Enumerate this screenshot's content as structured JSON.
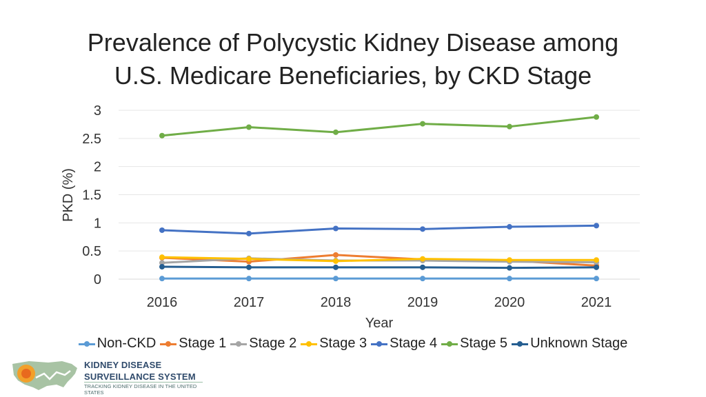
{
  "chart_data": {
    "type": "line",
    "title_lines": [
      "Prevalence of Polycystic Kidney Disease among",
      "U.S. Medicare Beneficiaries, by CKD Stage"
    ],
    "xlabel": "Year",
    "ylabel": "PKD (%)",
    "categories": [
      "2016",
      "2017",
      "2018",
      "2019",
      "2020",
      "2021"
    ],
    "ylim": [
      0,
      3
    ],
    "yticks": [
      "0",
      "0.5",
      "1",
      "1.5",
      "2",
      "2.5",
      "3"
    ],
    "ytick_values": [
      0,
      0.5,
      1,
      1.5,
      2,
      2.5,
      3
    ],
    "grid": true,
    "legend_position": "bottom",
    "series": [
      {
        "name": "Non-CKD",
        "color": "#5b9bd5",
        "values": [
          0.01,
          0.01,
          0.01,
          0.01,
          0.01,
          0.01
        ]
      },
      {
        "name": "Stage 1",
        "color": "#ed7d31",
        "values": [
          0.38,
          0.31,
          0.43,
          0.35,
          0.33,
          0.24
        ]
      },
      {
        "name": "Stage 2",
        "color": "#a5a5a5",
        "values": [
          0.29,
          0.37,
          0.33,
          0.33,
          0.31,
          0.3
        ]
      },
      {
        "name": "Stage 3",
        "color": "#ffc000",
        "values": [
          0.39,
          0.36,
          0.32,
          0.36,
          0.34,
          0.34
        ]
      },
      {
        "name": "Stage 4",
        "color": "#4472c4",
        "values": [
          0.87,
          0.81,
          0.9,
          0.89,
          0.93,
          0.95
        ]
      },
      {
        "name": "Stage 5",
        "color": "#70ad47",
        "values": [
          2.55,
          2.7,
          2.61,
          2.76,
          2.71,
          2.88
        ]
      },
      {
        "name": "Unknown Stage",
        "color": "#255e91",
        "values": [
          0.22,
          0.21,
          0.21,
          0.21,
          0.2,
          0.21
        ]
      }
    ]
  },
  "logo": {
    "line1": "KIDNEY DISEASE",
    "line2": "SURVEILLANCE SYSTEM",
    "line3": "TRACKING KIDNEY DISEASE IN THE UNITED STATES"
  }
}
